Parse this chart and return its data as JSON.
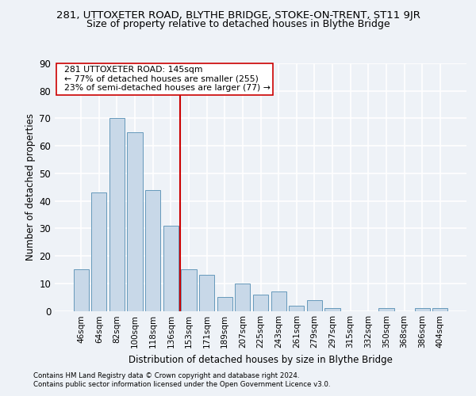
{
  "title1": "281, UTTOXETER ROAD, BLYTHE BRIDGE, STOKE-ON-TRENT, ST11 9JR",
  "title2": "Size of property relative to detached houses in Blythe Bridge",
  "xlabel": "Distribution of detached houses by size in Blythe Bridge",
  "ylabel": "Number of detached properties",
  "categories": [
    "46sqm",
    "64sqm",
    "82sqm",
    "100sqm",
    "118sqm",
    "136sqm",
    "153sqm",
    "171sqm",
    "189sqm",
    "207sqm",
    "225sqm",
    "243sqm",
    "261sqm",
    "279sqm",
    "297sqm",
    "315sqm",
    "332sqm",
    "350sqm",
    "368sqm",
    "386sqm",
    "404sqm"
  ],
  "values": [
    15,
    43,
    70,
    65,
    44,
    31,
    15,
    13,
    5,
    10,
    6,
    7,
    2,
    4,
    1,
    0,
    0,
    1,
    0,
    1,
    1
  ],
  "bar_color": "#c8d8e8",
  "bar_edge_color": "#6699bb",
  "vline_color": "#cc0000",
  "annotation_text": "  281 UTTOXETER ROAD: 145sqm\n  ← 77% of detached houses are smaller (255)\n  23% of semi-detached houses are larger (77) →",
  "annotation_box_color": "#ffffff",
  "annotation_box_edge": "#cc0000",
  "ylim": [
    0,
    90
  ],
  "yticks": [
    0,
    10,
    20,
    30,
    40,
    50,
    60,
    70,
    80,
    90
  ],
  "footer1": "Contains HM Land Registry data © Crown copyright and database right 2024.",
  "footer2": "Contains public sector information licensed under the Open Government Licence v3.0.",
  "bg_color": "#eef2f7",
  "grid_color": "#ffffff",
  "title_fontsize": 9.5,
  "subtitle_fontsize": 9.0,
  "bar_width": 0.85
}
